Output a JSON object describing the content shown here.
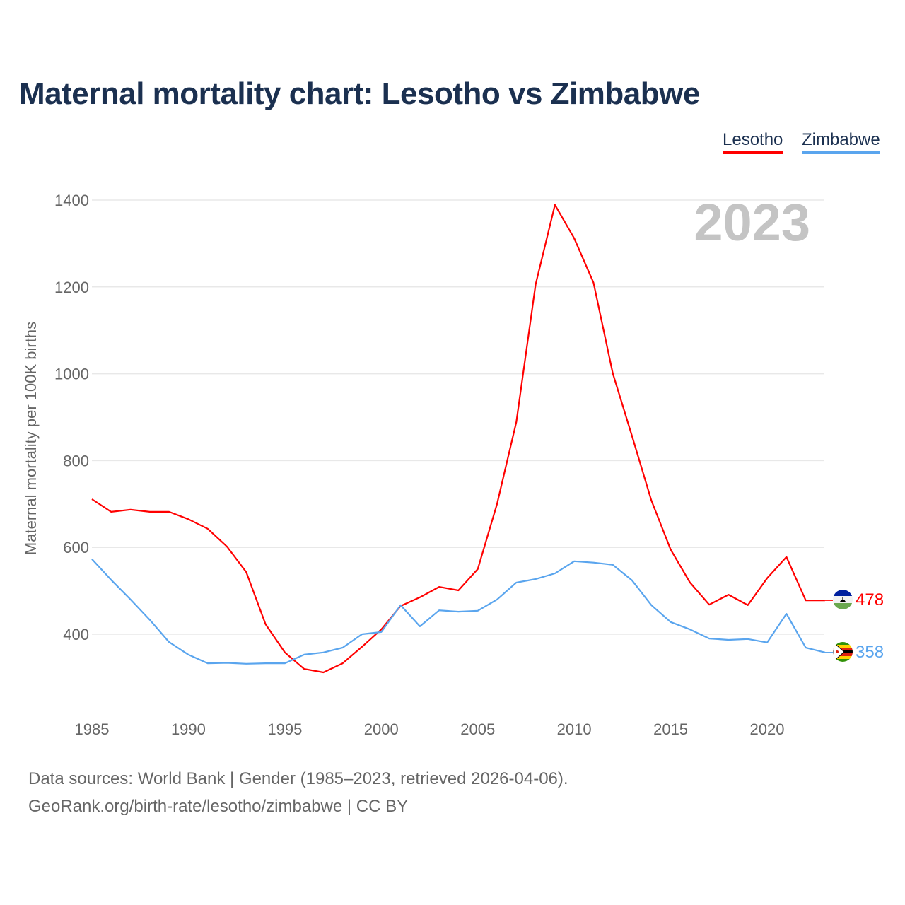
{
  "chart_data": {
    "type": "line",
    "title": "Maternal mortality chart: Lesotho vs Zimbabwe",
    "ylabel": "Maternal mortality per 100K births",
    "xlabel": "",
    "year_badge": "2023",
    "x": [
      1985,
      1986,
      1987,
      1988,
      1989,
      1990,
      1991,
      1992,
      1993,
      1994,
      1995,
      1996,
      1997,
      1998,
      1999,
      2000,
      2001,
      2002,
      2003,
      2004,
      2005,
      2006,
      2007,
      2008,
      2009,
      2010,
      2011,
      2012,
      2013,
      2014,
      2015,
      2016,
      2017,
      2018,
      2019,
      2020,
      2021,
      2022,
      2023
    ],
    "xticks": [
      "1985",
      "1990",
      "1995",
      "2000",
      "2005",
      "2010",
      "2015",
      "2020"
    ],
    "yticks": [
      "400",
      "600",
      "800",
      "1000",
      "1200",
      "1400"
    ],
    "ylim": [
      230,
      1400
    ],
    "grid": true,
    "legend_position": "top-right",
    "series": [
      {
        "name": "Lesotho",
        "color": "#ff0000",
        "end_label": "478",
        "values": [
          711,
          682,
          687,
          682,
          682,
          665,
          643,
          602,
          543,
          423,
          358,
          320,
          312,
          333,
          371,
          411,
          465,
          485,
          509,
          501,
          550,
          700,
          889,
          1206,
          1389,
          1312,
          1210,
          1001,
          856,
          708,
          595,
          519,
          468,
          491,
          467,
          529,
          578,
          478,
          478
        ]
      },
      {
        "name": "Zimbabwe",
        "color": "#5aa5ee",
        "end_label": "358",
        "values": [
          573,
          525,
          480,
          433,
          382,
          353,
          333,
          334,
          332,
          333,
          333,
          353,
          358,
          369,
          400,
          405,
          467,
          418,
          455,
          452,
          454,
          480,
          519,
          527,
          540,
          568,
          565,
          560,
          524,
          467,
          428,
          411,
          390,
          387,
          389,
          381,
          447,
          369,
          358
        ]
      }
    ]
  },
  "footer": {
    "line1": "Data sources: World Bank | Gender (1985–2023, retrieved 2026-04-06).",
    "line2": "GeoRank.org/birth-rate/lesotho/zimbabwe | CC BY"
  }
}
